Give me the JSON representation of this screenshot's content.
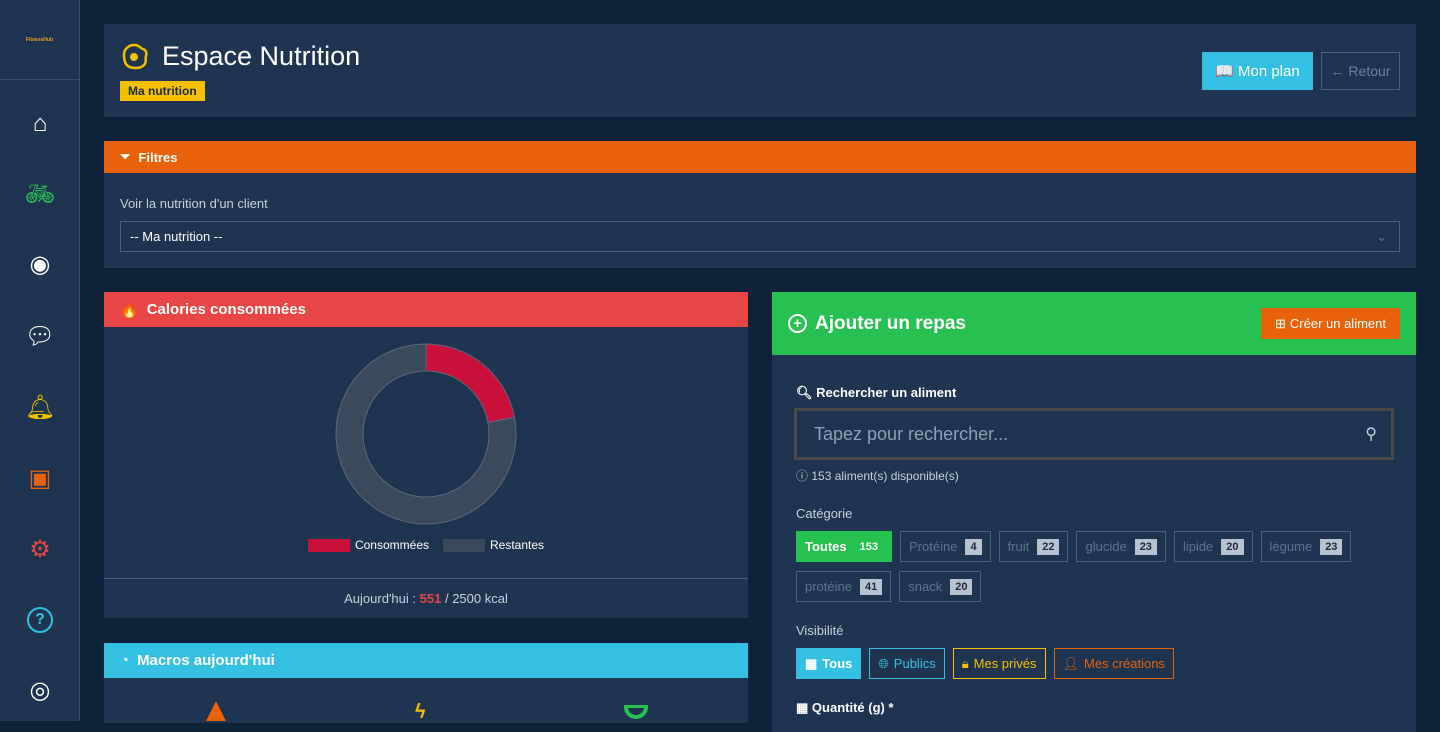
{
  "sidebar": {
    "logo_text": "FitnessHub",
    "items": [
      {
        "name": "home-icon",
        "color": "#ffffff"
      },
      {
        "name": "bike-icon",
        "color": "#27c152"
      },
      {
        "name": "egg-icon",
        "color": "#ffffff"
      },
      {
        "name": "chat-icon",
        "color": "#ffffff"
      },
      {
        "name": "bell-icon",
        "color": "#f5c000"
      },
      {
        "name": "phone-icon",
        "color": "#e8620a"
      },
      {
        "name": "gear-icon",
        "color": "#e84545"
      },
      {
        "name": "help-icon",
        "color": "#33c0e3"
      },
      {
        "name": "user-icon",
        "color": "#ffffff"
      }
    ]
  },
  "header": {
    "title": "Espace Nutrition",
    "badge": "Ma nutrition",
    "plan_label": "Mon plan",
    "back_label": "← Retour"
  },
  "filters": {
    "title": "Filtres",
    "client_label": "Voir la nutrition d'un client",
    "client_value": "-- Ma nutrition --"
  },
  "calories": {
    "title": "Calories consommées",
    "legend_consumed": "Consommées",
    "legend_remaining": "Restantes",
    "today_label": "Aujourd'hui :",
    "consumed": "551",
    "total": "/ 2500 kcal",
    "colors": {
      "consumed": "#c8103a",
      "remaining": "#3a4a5c"
    }
  },
  "chart_data": {
    "type": "pie",
    "categories": [
      "Consommées",
      "Restantes"
    ],
    "values": [
      551,
      1949
    ]
  },
  "macros": {
    "title": "Macros aujourd'hui"
  },
  "repas": {
    "title": "Ajouter un repas",
    "create_label": "Créer un aliment",
    "search_label": "Rechercher un aliment",
    "search_placeholder": "Tapez pour rechercher...",
    "available": "153 aliment(s) disponible(s)",
    "category_label": "Catégorie",
    "categories": [
      {
        "label": "Toutes",
        "count": "153",
        "active": true
      },
      {
        "label": "Protéine",
        "count": "4"
      },
      {
        "label": "fruit",
        "count": "22"
      },
      {
        "label": "glucide",
        "count": "23"
      },
      {
        "label": "lipide",
        "count": "20"
      },
      {
        "label": "légume",
        "count": "23"
      },
      {
        "label": "protéine",
        "count": "41"
      },
      {
        "label": "snack",
        "count": "20"
      }
    ],
    "visibility_label": "Visibilité",
    "visibility": [
      {
        "label": "Tous",
        "color": "#33c0e3",
        "active": true
      },
      {
        "label": "Publics",
        "color": "#33c0e3"
      },
      {
        "label": "Mes privés",
        "color": "#f5c000"
      },
      {
        "label": "Mes créations",
        "color": "#e8620a"
      }
    ],
    "quantity_label": "Quantité (g) *"
  }
}
